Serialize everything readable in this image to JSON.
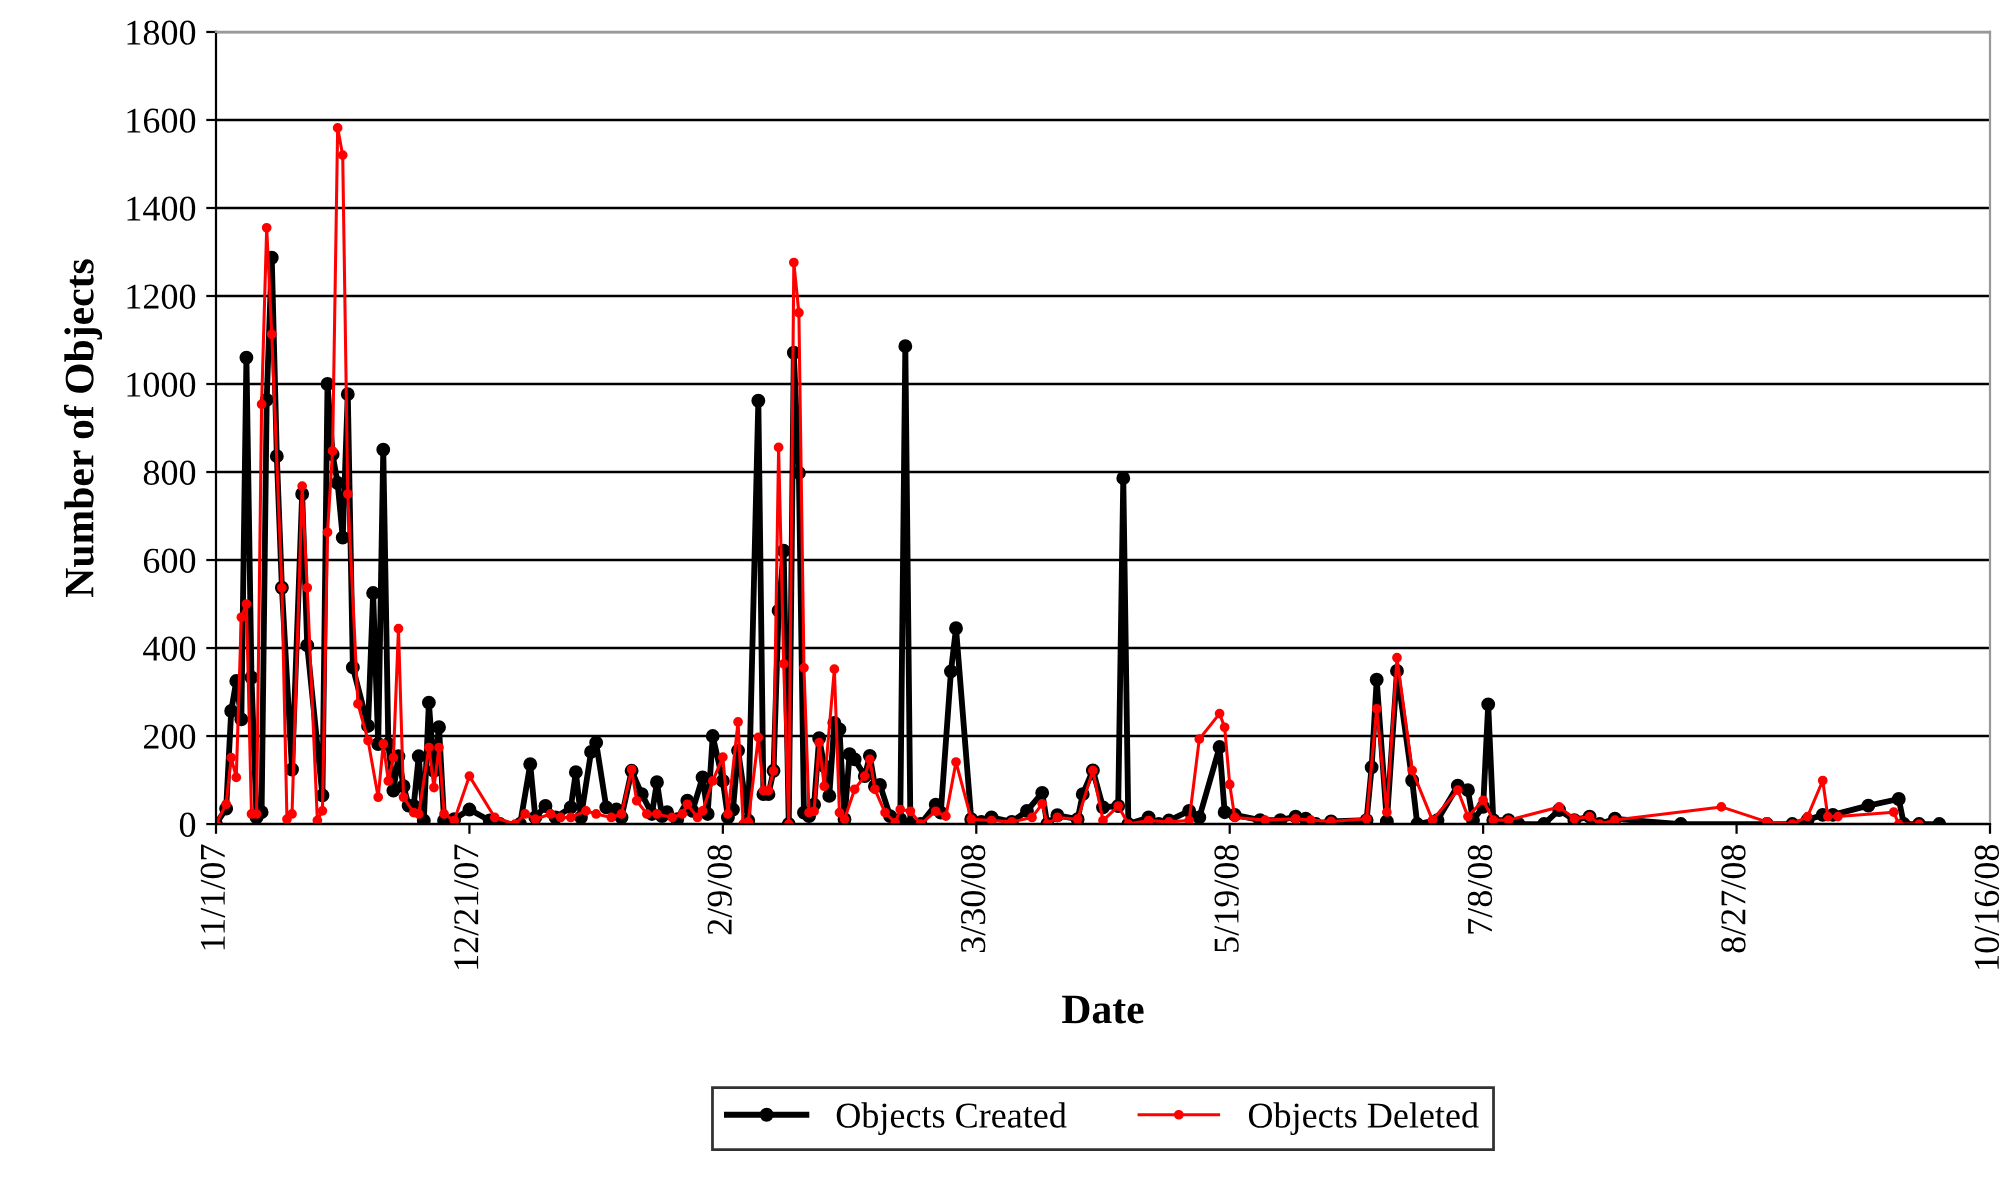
{
  "chart_data": {
    "type": "line",
    "xlabel": "Date",
    "ylabel": "Number of Objects",
    "xlim": [
      "2007-11-01",
      "2008-10-16"
    ],
    "xticks": [
      {
        "value": "2007-11-01",
        "label": "11/1/07"
      },
      {
        "value": "2007-12-21",
        "label": "12/21/07"
      },
      {
        "value": "2008-02-09",
        "label": "2/9/08"
      },
      {
        "value": "2008-03-30",
        "label": "3/30/08"
      },
      {
        "value": "2008-05-19",
        "label": "5/19/08"
      },
      {
        "value": "2008-07-08",
        "label": "7/8/08"
      },
      {
        "value": "2008-08-27",
        "label": "8/27/08"
      },
      {
        "value": "2008-10-16",
        "label": "10/16/08"
      }
    ],
    "ylim": [
      0,
      1800
    ],
    "yticks": [
      0,
      200,
      400,
      600,
      800,
      1000,
      1200,
      1400,
      1600,
      1800
    ],
    "grid": "y",
    "legend": "bottom",
    "marker": "circle",
    "line_style": "solid",
    "series": [
      {
        "name": "Objects Created",
        "color": "#000000",
        "x": [
          "2007-11-01",
          "2007-11-03",
          "2007-11-04",
          "2007-11-05",
          "2007-11-06",
          "2007-11-07",
          "2007-11-08",
          "2007-11-09",
          "2007-11-10",
          "2007-11-11",
          "2007-11-12",
          "2007-11-13",
          "2007-11-14",
          "2007-11-16",
          "2007-11-18",
          "2007-11-19",
          "2007-11-22",
          "2007-11-23",
          "2007-11-24",
          "2007-11-25",
          "2007-11-26",
          "2007-11-27",
          "2007-11-28",
          "2007-12-01",
          "2007-12-02",
          "2007-12-03",
          "2007-12-04",
          "2007-12-05",
          "2007-12-06",
          "2007-12-07",
          "2007-12-08",
          "2007-12-09",
          "2007-12-10",
          "2007-12-11",
          "2007-12-12",
          "2007-12-13",
          "2007-12-14",
          "2007-12-15",
          "2007-12-16",
          "2007-12-18",
          "2007-12-21",
          "2007-12-25",
          "2007-12-27",
          "2007-12-31",
          "2008-01-02",
          "2008-01-03",
          "2008-01-05",
          "2008-01-07",
          "2008-01-10",
          "2008-01-11",
          "2008-01-12",
          "2008-01-14",
          "2008-01-15",
          "2008-01-17",
          "2008-01-19",
          "2008-01-20",
          "2008-01-22",
          "2008-01-24",
          "2008-01-26",
          "2008-01-27",
          "2008-01-28",
          "2008-01-29",
          "2008-01-31",
          "2008-02-02",
          "2008-02-03",
          "2008-02-05",
          "2008-02-06",
          "2008-02-07",
          "2008-02-09",
          "2008-02-10",
          "2008-02-11",
          "2008-02-12",
          "2008-02-14",
          "2008-02-16",
          "2008-02-17",
          "2008-02-18",
          "2008-02-19",
          "2008-02-20",
          "2008-02-21",
          "2008-02-22",
          "2008-02-23",
          "2008-02-24",
          "2008-02-25",
          "2008-02-26",
          "2008-02-27",
          "2008-02-28",
          "2008-02-29",
          "2008-03-01",
          "2008-03-02",
          "2008-03-03",
          "2008-03-04",
          "2008-03-05",
          "2008-03-06",
          "2008-03-08",
          "2008-03-09",
          "2008-03-10",
          "2008-03-11",
          "2008-03-13",
          "2008-03-15",
          "2008-03-16",
          "2008-03-17",
          "2008-03-19",
          "2008-03-22",
          "2008-03-23",
          "2008-03-25",
          "2008-03-26",
          "2008-03-29",
          "2008-03-31",
          "2008-04-02",
          "2008-04-06",
          "2008-04-09",
          "2008-04-12",
          "2008-04-13",
          "2008-04-15",
          "2008-04-19",
          "2008-04-20",
          "2008-04-22",
          "2008-04-24",
          "2008-04-27",
          "2008-04-28",
          "2008-04-29",
          "2008-05-03",
          "2008-05-05",
          "2008-05-07",
          "2008-05-11",
          "2008-05-13",
          "2008-05-17",
          "2008-05-18",
          "2008-05-20",
          "2008-05-25",
          "2008-05-29",
          "2008-06-01",
          "2008-06-03",
          "2008-06-05",
          "2008-06-08",
          "2008-06-15",
          "2008-06-16",
          "2008-06-17",
          "2008-06-19",
          "2008-06-21",
          "2008-06-24",
          "2008-06-25",
          "2008-06-29",
          "2008-07-03",
          "2008-07-05",
          "2008-07-06",
          "2008-07-08",
          "2008-07-09",
          "2008-07-10",
          "2008-07-13",
          "2008-07-15",
          "2008-07-20",
          "2008-07-23",
          "2008-07-26",
          "2008-07-29",
          "2008-07-31",
          "2008-08-03",
          "2008-08-16",
          "2008-09-02",
          "2008-09-07",
          "2008-09-10",
          "2008-09-13",
          "2008-09-15",
          "2008-09-22",
          "2008-09-28",
          "2008-09-29",
          "2008-10-02",
          "2008-10-06"
        ],
        "values": [
          0,
          35,
          257,
          325,
          238,
          1060,
          333,
          15,
          27,
          964,
          1287,
          836,
          537,
          124,
          750,
          406,
          65,
          1000,
          840,
          775,
          651,
          977,
          356,
          223,
          525,
          182,
          851,
          182,
          76,
          154,
          86,
          42,
          41,
          154,
          8,
          276,
          121,
          220,
          8,
          11,
          33,
          8,
          0,
          0,
          136,
          15,
          41,
          15,
          38,
          118,
          15,
          164,
          185,
          38,
          33,
          15,
          121,
          68,
          23,
          95,
          18,
          27,
          11,
          53,
          30,
          106,
          23,
          200,
          98,
          15,
          33,
          167,
          8,
          962,
          68,
          68,
          121,
          485,
          621,
          0,
          1071,
          798,
          26,
          18,
          44,
          195,
          132,
          64,
          230,
          215,
          11,
          159,
          147,
          109,
          155,
          86,
          89,
          18,
          11,
          1086,
          0,
          0,
          44,
          26,
          347,
          445,
          11,
          5,
          15,
          5,
          30,
          71,
          0,
          20,
          11,
          68,
          122,
          38,
          41,
          786,
          0,
          15,
          0,
          8,
          30,
          15,
          175,
          27,
          21,
          9,
          9,
          17,
          12,
          0,
          6,
          9,
          129,
          328,
          6,
          348,
          99,
          0,
          9,
          87,
          77,
          9,
          39,
          272,
          9,
          9,
          0,
          0,
          32,
          9,
          17,
          0,
          12,
          0,
          0,
          0,
          9,
          21,
          21,
          42,
          57,
          0,
          0,
          0
        ]
      },
      {
        "name": "Objects Deleted",
        "color": "#ff0000",
        "x": [
          "2007-11-01",
          "2007-11-03",
          "2007-11-04",
          "2007-11-05",
          "2007-11-06",
          "2007-11-07",
          "2007-11-08",
          "2007-11-09",
          "2007-11-10",
          "2007-11-11",
          "2007-11-12",
          "2007-11-14",
          "2007-11-15",
          "2007-11-16",
          "2007-11-18",
          "2007-11-19",
          "2007-11-21",
          "2007-11-22",
          "2007-11-23",
          "2007-11-24",
          "2007-11-25",
          "2007-11-26",
          "2007-11-27",
          "2007-11-29",
          "2007-12-01",
          "2007-12-03",
          "2007-12-04",
          "2007-12-05",
          "2007-12-06",
          "2007-12-07",
          "2007-12-08",
          "2007-12-10",
          "2007-12-11",
          "2007-12-13",
          "2007-12-14",
          "2007-12-15",
          "2007-12-16",
          "2007-12-18",
          "2007-12-21",
          "2007-12-26",
          "2007-12-30",
          "2008-01-01",
          "2008-01-03",
          "2008-01-06",
          "2008-01-08",
          "2008-01-10",
          "2008-01-13",
          "2008-01-15",
          "2008-01-18",
          "2008-01-20",
          "2008-01-22",
          "2008-01-23",
          "2008-01-25",
          "2008-01-27",
          "2008-01-30",
          "2008-02-01",
          "2008-02-02",
          "2008-02-04",
          "2008-02-05",
          "2008-02-07",
          "2008-02-09",
          "2008-02-10",
          "2008-02-12",
          "2008-02-13",
          "2008-02-14",
          "2008-02-16",
          "2008-02-17",
          "2008-02-18",
          "2008-02-19",
          "2008-02-20",
          "2008-02-21",
          "2008-02-22",
          "2008-02-23",
          "2008-02-24",
          "2008-02-25",
          "2008-02-26",
          "2008-02-27",
          "2008-02-28",
          "2008-02-29",
          "2008-03-02",
          "2008-03-03",
          "2008-03-04",
          "2008-03-06",
          "2008-03-08",
          "2008-03-09",
          "2008-03-10",
          "2008-03-12",
          "2008-03-14",
          "2008-03-15",
          "2008-03-17",
          "2008-03-19",
          "2008-03-22",
          "2008-03-24",
          "2008-03-26",
          "2008-03-29",
          "2008-04-02",
          "2008-04-06",
          "2008-04-10",
          "2008-04-12",
          "2008-04-13",
          "2008-04-15",
          "2008-04-19",
          "2008-04-22",
          "2008-04-24",
          "2008-04-27",
          "2008-04-29",
          "2008-05-03",
          "2008-05-07",
          "2008-05-11",
          "2008-05-13",
          "2008-05-17",
          "2008-05-18",
          "2008-05-19",
          "2008-05-20",
          "2008-05-26",
          "2008-06-01",
          "2008-06-04",
          "2008-06-08",
          "2008-06-15",
          "2008-06-17",
          "2008-06-19",
          "2008-06-21",
          "2008-06-24",
          "2008-06-28",
          "2008-07-03",
          "2008-07-05",
          "2008-07-08",
          "2008-07-10",
          "2008-07-13",
          "2008-07-23",
          "2008-07-26",
          "2008-07-29",
          "2008-07-31",
          "2008-08-03",
          "2008-08-24",
          "2008-09-02",
          "2008-09-07",
          "2008-09-10",
          "2008-09-13",
          "2008-09-14",
          "2008-09-16",
          "2008-09-27",
          "2008-09-28",
          "2008-10-02"
        ],
        "values": [
          0,
          45,
          151,
          106,
          470,
          500,
          23,
          23,
          954,
          1355,
          1113,
          537,
          11,
          23,
          768,
          537,
          8,
          30,
          663,
          848,
          1582,
          1520,
          750,
          273,
          190,
          61,
          182,
          98,
          151,
          444,
          61,
          26,
          23,
          174,
          83,
          174,
          23,
          8,
          109,
          15,
          0,
          23,
          11,
          23,
          15,
          15,
          30,
          23,
          15,
          23,
          124,
          53,
          23,
          23,
          15,
          23,
          45,
          15,
          30,
          98,
          152,
          23,
          232,
          0,
          5,
          197,
          76,
          76,
          121,
          856,
          364,
          0,
          1276,
          1162,
          355,
          26,
          29,
          185,
          86,
          352,
          26,
          11,
          79,
          109,
          147,
          79,
          26,
          3,
          33,
          29,
          0,
          29,
          18,
          141,
          11,
          8,
          5,
          15,
          46,
          0,
          15,
          11,
          122,
          8,
          41,
          0,
          8,
          5,
          8,
          193,
          251,
          220,
          90,
          15,
          9,
          12,
          9,
          6,
          12,
          262,
          27,
          378,
          122,
          9,
          77,
          17,
          54,
          9,
          9,
          39,
          12,
          17,
          0,
          9,
          39,
          5,
          0,
          17,
          99,
          17,
          17,
          27,
          0,
          0
        ]
      }
    ]
  }
}
